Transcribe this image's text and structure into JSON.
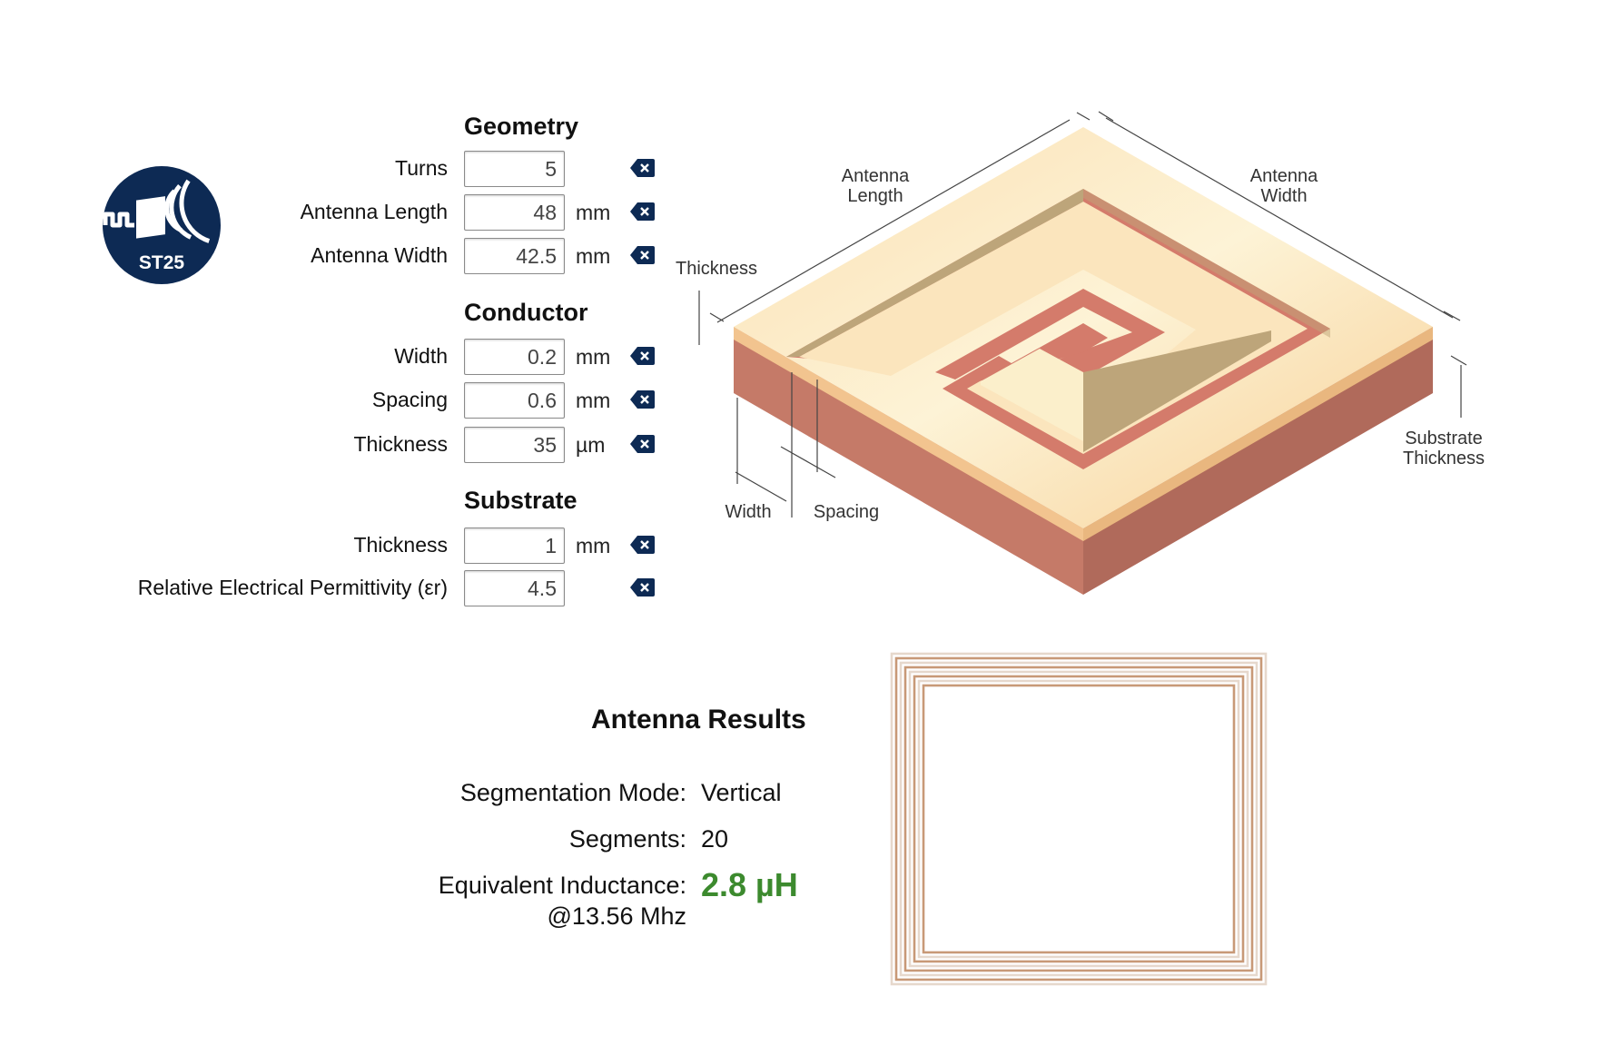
{
  "logo": {
    "text": "ST25",
    "color": "#0d2a54"
  },
  "geometry": {
    "title": "Geometry",
    "fields": [
      {
        "label": "Turns",
        "value": "5",
        "unit": ""
      },
      {
        "label": "Antenna Length",
        "value": "48",
        "unit": "mm"
      },
      {
        "label": "Antenna Width",
        "value": "42.5",
        "unit": "mm"
      }
    ]
  },
  "conductor": {
    "title": "Conductor",
    "fields": [
      {
        "label": "Width",
        "value": "0.2",
        "unit": "mm"
      },
      {
        "label": "Spacing",
        "value": "0.6",
        "unit": "mm"
      },
      {
        "label": "Thickness",
        "value": "35",
        "unit": "µm"
      }
    ]
  },
  "substrate": {
    "title": "Substrate",
    "fields": [
      {
        "label": "Thickness",
        "value": "1",
        "unit": "mm"
      },
      {
        "label": "Relative Electrical Permittivity (εr)",
        "value": "4.5",
        "unit": ""
      }
    ]
  },
  "diagram": {
    "labels": {
      "antenna_length": [
        "Antenna",
        "Length"
      ],
      "antenna_width": [
        "Antenna",
        "Width"
      ],
      "thickness": "Thickness",
      "substrate_thickness": [
        "Substrate",
        "Thickness"
      ],
      "width": "Width",
      "spacing": "Spacing"
    }
  },
  "results": {
    "title": "Antenna Results",
    "segmentation_mode_label": "Segmentation Mode:",
    "segmentation_mode_value": "Vertical",
    "segments_label": "Segments:",
    "segments_value": "20",
    "inductance_label": "Equivalent Inductance:",
    "inductance_sublabel": "@13.56 Mhz",
    "inductance_value": "2.8 µH",
    "accent_color": "#3c8a2e"
  },
  "icons": {
    "clear": "clear-icon",
    "logo": "nfc-logo-icon"
  }
}
